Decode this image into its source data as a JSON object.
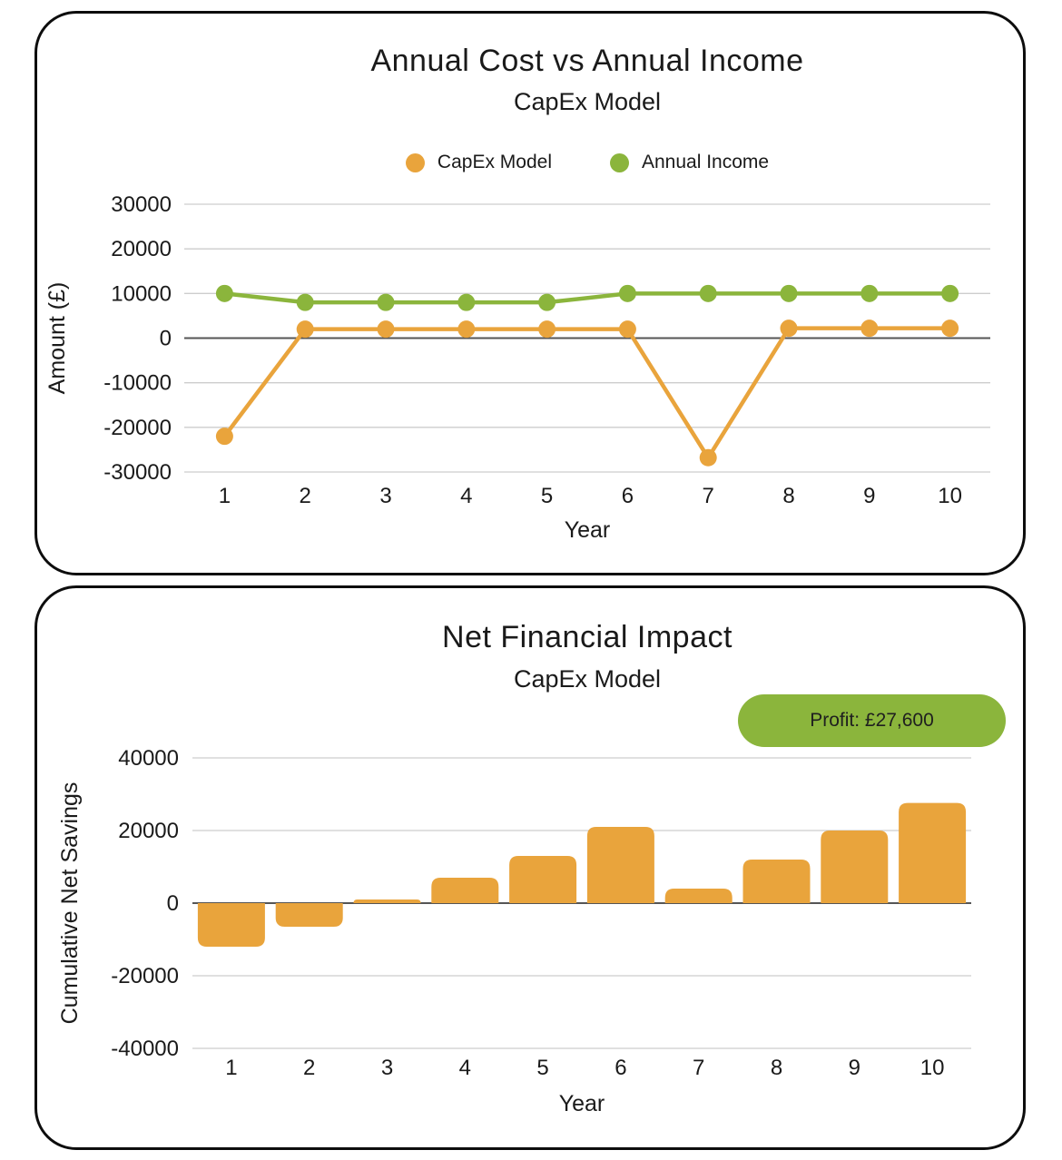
{
  "colors": {
    "orange": "#E9A43C",
    "green": "#8BB53C",
    "badge_bg": "#8BB53C",
    "badge_text": "#1F1F1F",
    "grid": "#CDCDCD",
    "zero_line": "#555555",
    "text": "#1A1A1A",
    "card_border": "#0D0D0D"
  },
  "chart_data": [
    {
      "type": "line",
      "title": "Annual Cost vs Annual Income",
      "subtitle": "CapEx Model",
      "xlabel": "Year",
      "ylabel": "Amount (£)",
      "categories": [
        "1",
        "2",
        "3",
        "4",
        "5",
        "6",
        "7",
        "8",
        "9",
        "10"
      ],
      "series": [
        {
          "name": "CapEx Model",
          "color_key": "orange",
          "values": [
            -22000,
            2000,
            2000,
            2000,
            2000,
            2000,
            -26800,
            2200,
            2200,
            2200
          ]
        },
        {
          "name": "Annual Income",
          "color_key": "green",
          "values": [
            10000,
            8000,
            8000,
            8000,
            8000,
            10000,
            10000,
            10000,
            10000,
            10000
          ]
        }
      ],
      "ylim": [
        -30000,
        30000
      ],
      "yticks": [
        30000,
        20000,
        10000,
        0,
        -10000,
        -20000,
        -30000
      ],
      "grid": "horizontal",
      "legend_position": "top"
    },
    {
      "type": "bar",
      "title": "Net Financial Impact",
      "subtitle": "CapEx Model",
      "xlabel": "Year",
      "ylabel": "Cumulative Net Savings",
      "categories": [
        "1",
        "2",
        "3",
        "4",
        "5",
        "6",
        "7",
        "8",
        "9",
        "10"
      ],
      "values": [
        -12000,
        -6500,
        1000,
        7000,
        13000,
        21000,
        4000,
        12000,
        20000,
        27600
      ],
      "bar_color_key": "orange",
      "ylim": [
        -40000,
        40000
      ],
      "yticks": [
        40000,
        20000,
        0,
        -20000,
        -40000
      ],
      "grid": "horizontal",
      "badge_label": "Profit: £27,600"
    }
  ]
}
